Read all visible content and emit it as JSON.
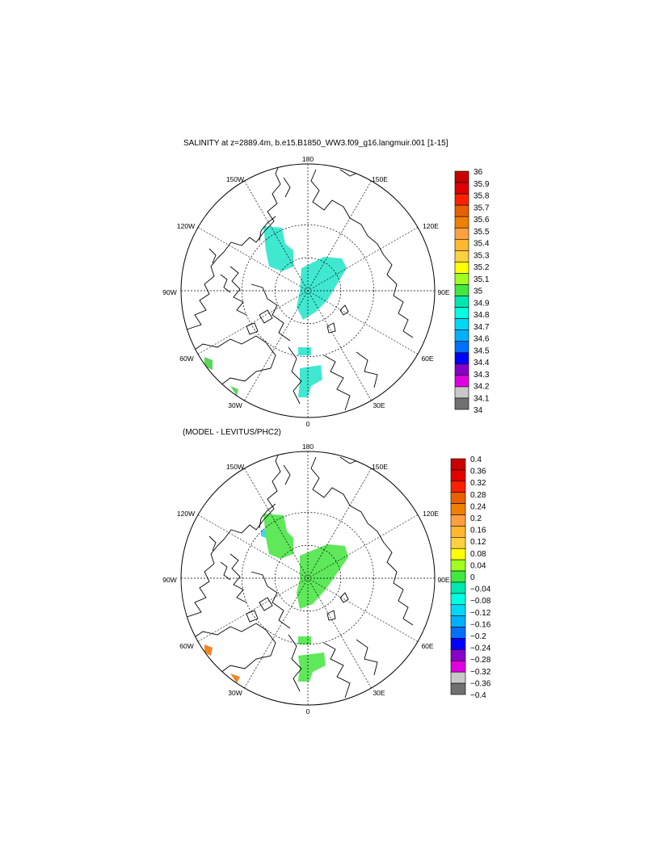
{
  "panels": [
    {
      "title": "SALINITY at z=2889.4m, b.e15.B1850_WW3.f09_g16.langmuir.001 [1-15]",
      "lon_labels": [
        "180",
        "150E",
        "120E",
        "90E",
        "60E",
        "30E",
        "0",
        "30W",
        "60W",
        "90W",
        "120W",
        "150W"
      ],
      "colorbar": {
        "labels": [
          "36",
          "35.9",
          "35.8",
          "35.7",
          "35.6",
          "35.5",
          "35.4",
          "35.3",
          "35.2",
          "35.1",
          "35",
          "34.9",
          "34.8",
          "34.7",
          "34.6",
          "34.5",
          "34.4",
          "34.3",
          "34.2",
          "34.1",
          "34"
        ],
        "colors": [
          "#c80000",
          "#e00000",
          "#ff2000",
          "#e86000",
          "#f08000",
          "#ffa040",
          "#ffb830",
          "#ffd040",
          "#ffff00",
          "#a0ff20",
          "#40e840",
          "#00e8b0",
          "#00ffe0",
          "#00d8f8",
          "#00b0ff",
          "#0070ff",
          "#0000ff",
          "#8800c8",
          "#e000e0",
          "#c8c8c8",
          "#707070"
        ]
      }
    },
    {
      "title": "(MODEL - LEVITUS/PHC2)",
      "lon_labels": [
        "180",
        "150E",
        "120E",
        "90E",
        "60E",
        "30E",
        "0",
        "30W",
        "60W",
        "90W",
        "120W",
        "150W"
      ],
      "colorbar": {
        "labels": [
          "0.4",
          "0.36",
          "0.32",
          "0.28",
          "0.24",
          "0.2",
          "0.16",
          "0.12",
          "0.08",
          "0.04",
          "0",
          "−0.04",
          "−0.08",
          "−0.12",
          "−0.16",
          "−0.2",
          "−0.24",
          "−0.28",
          "−0.32",
          "−0.36",
          "−0.4"
        ],
        "colors": [
          "#c80000",
          "#e00000",
          "#ff2000",
          "#e86000",
          "#f08000",
          "#ffa040",
          "#ffb830",
          "#ffd040",
          "#ffff00",
          "#a0ff20",
          "#40e840",
          "#00e8b0",
          "#00ffe0",
          "#00d8f8",
          "#00b0ff",
          "#0070ff",
          "#0000ff",
          "#8800c8",
          "#e000e0",
          "#c8c8c8",
          "#707070"
        ]
      }
    }
  ],
  "field_colors": {
    "salinity_main": "#40e8d0",
    "salinity_edge": "#5ad65a",
    "anomaly_main": "#5ee85a",
    "anomaly_edge": "#ee8822",
    "anomaly_small": "#40d8e8"
  }
}
